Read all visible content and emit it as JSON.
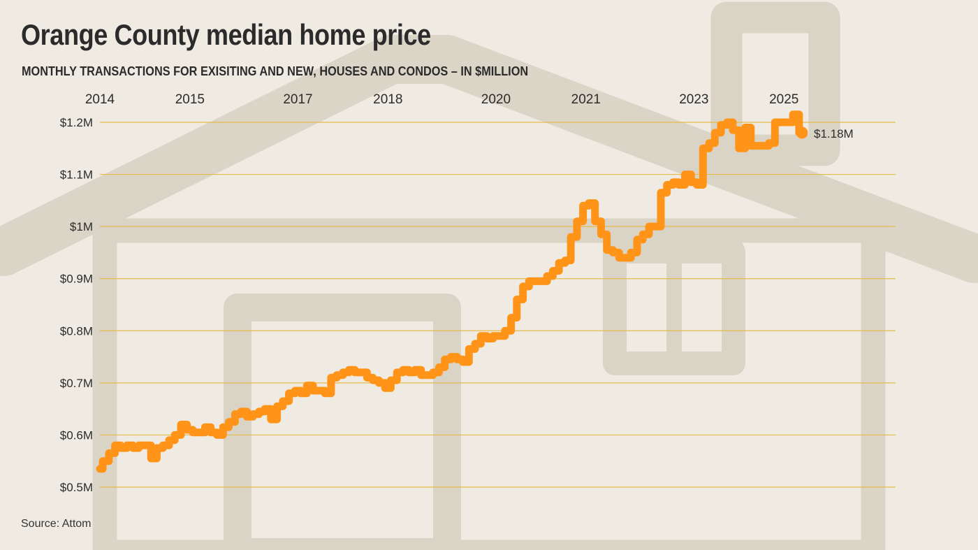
{
  "header": {
    "title": "Orange County median home price",
    "subtitle": "MONTHLY TRANSACTIONS FOR EXISITING AND NEW, HOUSES AND CONDOS – IN $MILLION"
  },
  "footer": {
    "source": "Source: Attom"
  },
  "colors": {
    "line": "#ff9418",
    "grid": "#e6b94a",
    "text": "#2b2b2b",
    "background": "#efebe3"
  },
  "chart_data": {
    "type": "line",
    "title": "Orange County median home price",
    "subtitle": "MONTHLY TRANSACTIONS FOR EXISITING AND NEW, HOUSES AND CONDOS – IN $MILLION",
    "source": "Source: Attom",
    "x_axis": {
      "position": "top",
      "tick_labels": [
        "2014",
        "2015",
        "2017",
        "2018",
        "2020",
        "2021",
        "2023",
        "2025"
      ],
      "tick_values": [
        2014.0,
        2015.25,
        2016.75,
        2018.0,
        2019.5,
        2020.75,
        2022.25,
        2023.5
      ]
    },
    "y_axis": {
      "tick_values": [
        0.5,
        0.6,
        0.7,
        0.8,
        0.9,
        1.0,
        1.1,
        1.2
      ],
      "tick_labels": [
        "$0.5M",
        "$0.6M",
        "$0.7M",
        "$0.8M",
        "$0.9M",
        "$1M",
        "$1.1M",
        "$1.2M"
      ]
    },
    "xlim": [
      2014.0,
      2025.05
    ],
    "ylim": [
      0.5,
      1.2
    ],
    "grid": true,
    "end_label": "$1.18M",
    "series": [
      {
        "values": [
          [
            2014.0,
            0.535
          ],
          [
            2014.08,
            0.55
          ],
          [
            2014.17,
            0.565
          ],
          [
            2014.25,
            0.58
          ],
          [
            2014.33,
            0.575
          ],
          [
            2014.42,
            0.58
          ],
          [
            2014.5,
            0.575
          ],
          [
            2014.58,
            0.58
          ],
          [
            2014.67,
            0.58
          ],
          [
            2014.75,
            0.555
          ],
          [
            2014.83,
            0.575
          ],
          [
            2014.92,
            0.58
          ],
          [
            2015.0,
            0.59
          ],
          [
            2015.08,
            0.6
          ],
          [
            2015.17,
            0.62
          ],
          [
            2015.25,
            0.61
          ],
          [
            2015.33,
            0.605
          ],
          [
            2015.42,
            0.605
          ],
          [
            2015.5,
            0.615
          ],
          [
            2015.58,
            0.605
          ],
          [
            2015.67,
            0.6
          ],
          [
            2015.75,
            0.615
          ],
          [
            2015.83,
            0.625
          ],
          [
            2015.92,
            0.64
          ],
          [
            2016.0,
            0.645
          ],
          [
            2016.08,
            0.635
          ],
          [
            2016.17,
            0.64
          ],
          [
            2016.25,
            0.645
          ],
          [
            2016.33,
            0.65
          ],
          [
            2016.42,
            0.63
          ],
          [
            2016.5,
            0.655
          ],
          [
            2016.58,
            0.665
          ],
          [
            2016.67,
            0.68
          ],
          [
            2016.75,
            0.685
          ],
          [
            2016.83,
            0.68
          ],
          [
            2016.92,
            0.695
          ],
          [
            2017.0,
            0.685
          ],
          [
            2017.08,
            0.685
          ],
          [
            2017.17,
            0.68
          ],
          [
            2017.25,
            0.71
          ],
          [
            2017.33,
            0.715
          ],
          [
            2017.42,
            0.72
          ],
          [
            2017.5,
            0.725
          ],
          [
            2017.58,
            0.72
          ],
          [
            2017.67,
            0.72
          ],
          [
            2017.75,
            0.71
          ],
          [
            2017.83,
            0.705
          ],
          [
            2017.92,
            0.7
          ],
          [
            2018.0,
            0.69
          ],
          [
            2018.08,
            0.705
          ],
          [
            2018.17,
            0.72
          ],
          [
            2018.25,
            0.725
          ],
          [
            2018.33,
            0.72
          ],
          [
            2018.42,
            0.725
          ],
          [
            2018.5,
            0.715
          ],
          [
            2018.58,
            0.715
          ],
          [
            2018.67,
            0.72
          ],
          [
            2018.75,
            0.73
          ],
          [
            2018.83,
            0.745
          ],
          [
            2018.92,
            0.75
          ],
          [
            2019.0,
            0.745
          ],
          [
            2019.08,
            0.74
          ],
          [
            2019.17,
            0.765
          ],
          [
            2019.25,
            0.775
          ],
          [
            2019.33,
            0.79
          ],
          [
            2019.42,
            0.785
          ],
          [
            2019.5,
            0.79
          ],
          [
            2019.58,
            0.79
          ],
          [
            2019.67,
            0.8
          ],
          [
            2019.75,
            0.825
          ],
          [
            2019.83,
            0.86
          ],
          [
            2019.92,
            0.885
          ],
          [
            2020.0,
            0.895
          ],
          [
            2020.08,
            0.895
          ],
          [
            2020.17,
            0.895
          ],
          [
            2020.25,
            0.905
          ],
          [
            2020.33,
            0.915
          ],
          [
            2020.42,
            0.93
          ],
          [
            2020.5,
            0.935
          ],
          [
            2020.58,
            0.98
          ],
          [
            2020.67,
            1.01
          ],
          [
            2020.75,
            1.04
          ],
          [
            2020.83,
            1.045
          ],
          [
            2020.92,
            1.01
          ],
          [
            2021.0,
            0.985
          ],
          [
            2021.08,
            0.955
          ],
          [
            2021.17,
            0.95
          ],
          [
            2021.25,
            0.94
          ],
          [
            2021.33,
            0.94
          ],
          [
            2021.42,
            0.95
          ],
          [
            2021.5,
            0.975
          ],
          [
            2021.58,
            0.985
          ],
          [
            2021.67,
            1.0
          ],
          [
            2021.75,
            1.0
          ],
          [
            2021.83,
            1.065
          ],
          [
            2021.92,
            1.08
          ],
          [
            2022.0,
            1.085
          ],
          [
            2022.08,
            1.08
          ],
          [
            2022.17,
            1.1
          ],
          [
            2022.25,
            1.085
          ],
          [
            2022.33,
            1.08
          ],
          [
            2022.42,
            1.15
          ],
          [
            2022.5,
            1.16
          ],
          [
            2022.58,
            1.18
          ],
          [
            2022.67,
            1.195
          ],
          [
            2022.75,
            1.2
          ],
          [
            2022.83,
            1.185
          ],
          [
            2022.92,
            1.15
          ],
          [
            2023.0,
            1.19
          ],
          [
            2023.08,
            1.155
          ],
          [
            2023.17,
            1.155
          ],
          [
            2023.25,
            1.155
          ],
          [
            2023.33,
            1.16
          ],
          [
            2023.42,
            1.2
          ],
          [
            2023.5,
            1.2
          ],
          [
            2023.58,
            1.2
          ],
          [
            2023.67,
            1.215
          ],
          [
            2023.75,
            1.18
          ]
        ]
      }
    ]
  }
}
